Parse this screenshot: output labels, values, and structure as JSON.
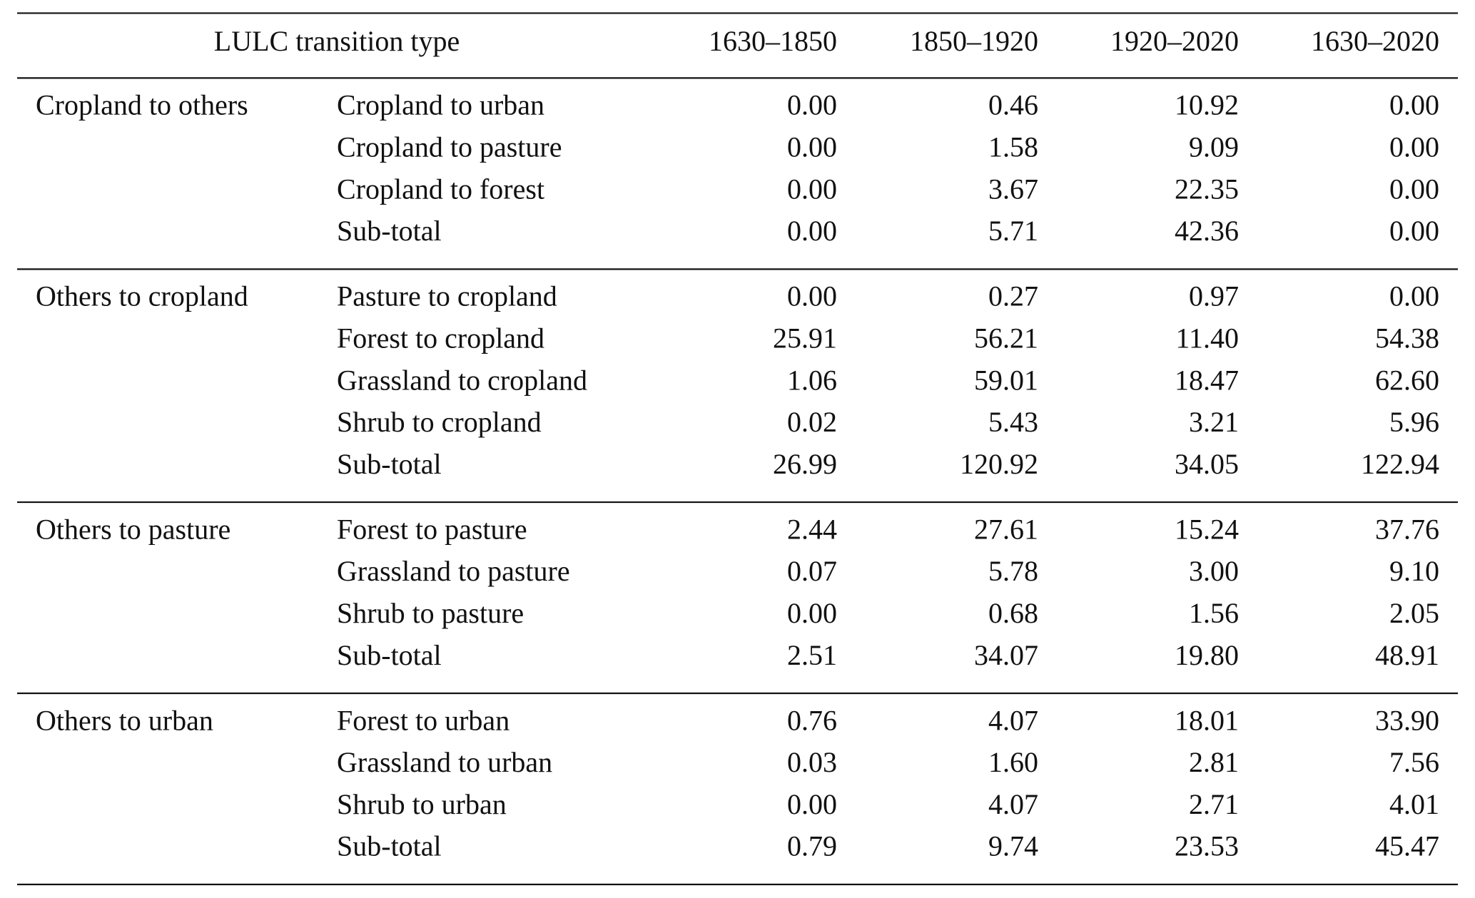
{
  "header": {
    "columns": [
      "LULC transition type",
      "1630–1850",
      "1850–1920",
      "1920–2020",
      "1630–2020"
    ]
  },
  "groups": [
    {
      "label": "Cropland to others",
      "rows": [
        {
          "label": "Cropland to urban",
          "values": [
            "0.00",
            "0.46",
            "10.92",
            "0.00"
          ]
        },
        {
          "label": "Cropland to pasture",
          "values": [
            "0.00",
            "1.58",
            "9.09",
            "0.00"
          ]
        },
        {
          "label": "Cropland to forest",
          "values": [
            "0.00",
            "3.67",
            "22.35",
            "0.00"
          ]
        },
        {
          "label": "Sub-total",
          "values": [
            "0.00",
            "5.71",
            "42.36",
            "0.00"
          ]
        }
      ]
    },
    {
      "label": "Others to cropland",
      "rows": [
        {
          "label": "Pasture to cropland",
          "values": [
            "0.00",
            "0.27",
            "0.97",
            "0.00"
          ]
        },
        {
          "label": "Forest to cropland",
          "values": [
            "25.91",
            "56.21",
            "11.40",
            "54.38"
          ]
        },
        {
          "label": "Grassland to cropland",
          "values": [
            "1.06",
            "59.01",
            "18.47",
            "62.60"
          ]
        },
        {
          "label": "Shrub to cropland",
          "values": [
            "0.02",
            "5.43",
            "3.21",
            "5.96"
          ]
        },
        {
          "label": "Sub-total",
          "values": [
            "26.99",
            "120.92",
            "34.05",
            "122.94"
          ]
        }
      ]
    },
    {
      "label": "Others to pasture",
      "rows": [
        {
          "label": "Forest to pasture",
          "values": [
            "2.44",
            "27.61",
            "15.24",
            "37.76"
          ]
        },
        {
          "label": "Grassland to pasture",
          "values": [
            "0.07",
            "5.78",
            "3.00",
            "9.10"
          ]
        },
        {
          "label": "Shrub to pasture",
          "values": [
            "0.00",
            "0.68",
            "1.56",
            "2.05"
          ]
        },
        {
          "label": "Sub-total",
          "values": [
            "2.51",
            "34.07",
            "19.80",
            "48.91"
          ]
        }
      ]
    },
    {
      "label": "Others to urban",
      "rows": [
        {
          "label": "Forest to urban",
          "values": [
            "0.76",
            "4.07",
            "18.01",
            "33.90"
          ]
        },
        {
          "label": "Grassland to urban",
          "values": [
            "0.03",
            "1.60",
            "2.81",
            "7.56"
          ]
        },
        {
          "label": "Shrub to urban",
          "values": [
            "0.00",
            "4.07",
            "2.71",
            "4.01"
          ]
        },
        {
          "label": "Sub-total",
          "values": [
            "0.79",
            "9.74",
            "23.53",
            "45.47"
          ]
        }
      ]
    }
  ]
}
